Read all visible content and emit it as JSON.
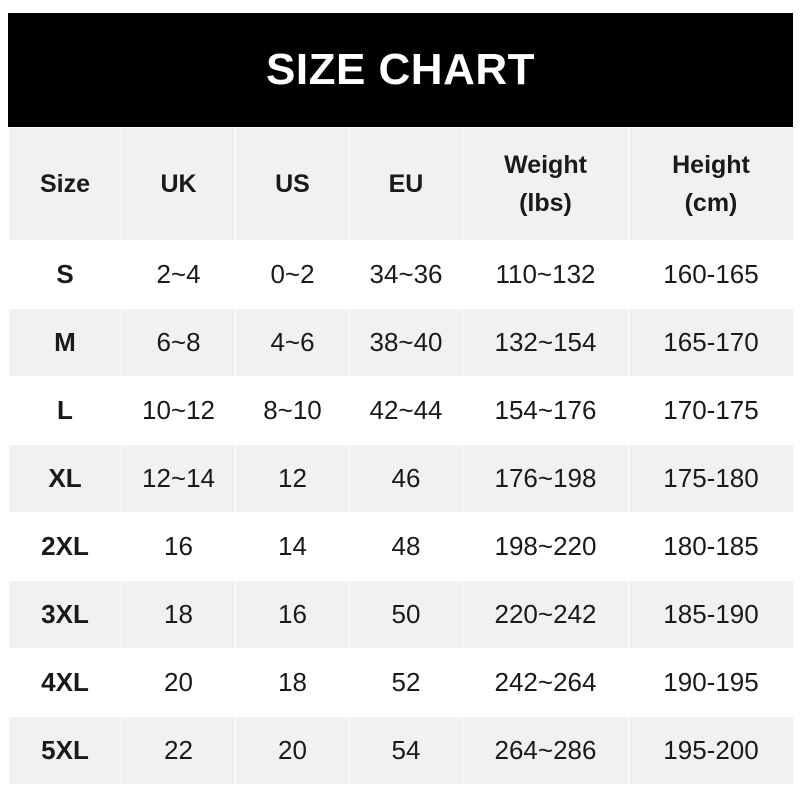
{
  "title": "SIZE CHART",
  "headers": [
    {
      "line1": "Size",
      "line2": ""
    },
    {
      "line1": "UK",
      "line2": ""
    },
    {
      "line1": "US",
      "line2": ""
    },
    {
      "line1": "EU",
      "line2": ""
    },
    {
      "line1": "Weight",
      "line2": "(lbs)"
    },
    {
      "line1": "Height",
      "line2": "(cm)"
    }
  ],
  "rows": [
    [
      "S",
      "2~4",
      "0~2",
      "34~36",
      "110~132",
      "160-165"
    ],
    [
      "M",
      "6~8",
      "4~6",
      "38~40",
      "132~154",
      "165-170"
    ],
    [
      "L",
      "10~12",
      "8~10",
      "42~44",
      "154~176",
      "170-175"
    ],
    [
      "XL",
      "12~14",
      "12",
      "46",
      "176~198",
      "175-180"
    ],
    [
      "2XL",
      "16",
      "14",
      "48",
      "198~220",
      "180-185"
    ],
    [
      "3XL",
      "18",
      "16",
      "50",
      "220~242",
      "185-190"
    ],
    [
      "4XL",
      "20",
      "18",
      "52",
      "242~264",
      "190-195"
    ],
    [
      "5XL",
      "22",
      "20",
      "54",
      "264~286",
      "195-200"
    ]
  ],
  "colors": {
    "header_bg": "#000000",
    "alt_row_bg": "#f1f1f1"
  }
}
